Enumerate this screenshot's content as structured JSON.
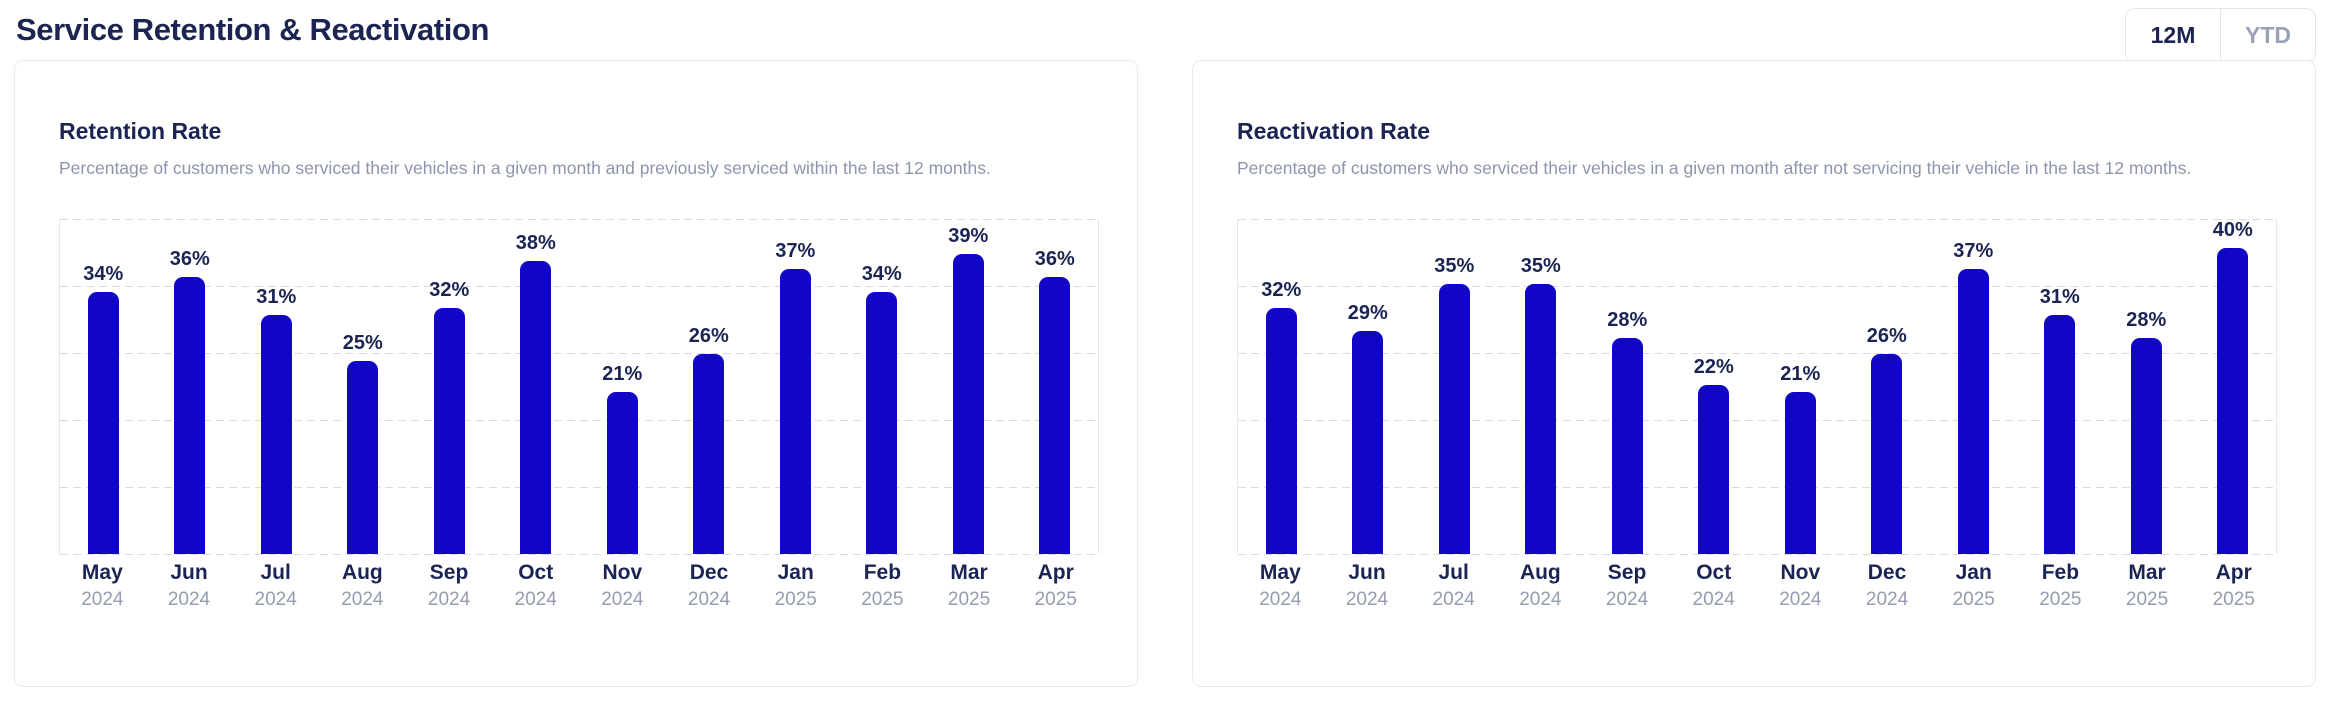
{
  "header": {
    "title": "Service Retention & Reactivation",
    "toggle": {
      "options": [
        {
          "label": "12M",
          "active": true
        },
        {
          "label": "YTD",
          "active": false
        }
      ]
    }
  },
  "colors": {
    "bar": "#1206c6",
    "heading_navy": "#1b2452",
    "muted_text": "#8d95ac",
    "year_text": "#959cb0",
    "gridline": "#d7dae2",
    "card_border": "#e8eaef",
    "inactive_toggle_text": "#9aa2b6"
  },
  "chart_data": [
    {
      "type": "bar",
      "title": "Retention Rate",
      "subtitle": "Percentage of customers who serviced their vehicles in a given month and previously serviced within the last 12 months.",
      "categories": [
        "May 2024",
        "Jun 2024",
        "Jul 2024",
        "Aug 2024",
        "Sep 2024",
        "Oct 2024",
        "Nov 2024",
        "Dec 2024",
        "Jan 2025",
        "Feb 2025",
        "Mar 2025",
        "Apr 2025"
      ],
      "values": [
        34,
        36,
        31,
        25,
        32,
        38,
        21,
        26,
        37,
        34,
        39,
        36
      ],
      "unit": "%",
      "xlabel": "",
      "ylabel": "",
      "ylim": [
        0,
        43.5
      ],
      "grid": "horizontal-dashed",
      "legend": "none",
      "bar_color": "#1206c6"
    },
    {
      "type": "bar",
      "title": "Reactivation Rate",
      "subtitle": "Percentage of customers who serviced their vehicles in a given month after not servicing their vehicle in the last 12 months.",
      "categories": [
        "May 2024",
        "Jun 2024",
        "Jul 2024",
        "Aug 2024",
        "Sep 2024",
        "Oct 2024",
        "Nov 2024",
        "Dec 2024",
        "Jan 2025",
        "Feb 2025",
        "Mar 2025",
        "Apr 2025"
      ],
      "values": [
        32,
        29,
        35,
        35,
        28,
        22,
        21,
        26,
        37,
        31,
        28,
        40
      ],
      "unit": "%",
      "xlabel": "",
      "ylabel": "",
      "ylim": [
        0,
        43.5
      ],
      "grid": "horizontal-dashed",
      "legend": "none",
      "bar_color": "#1206c6"
    }
  ]
}
